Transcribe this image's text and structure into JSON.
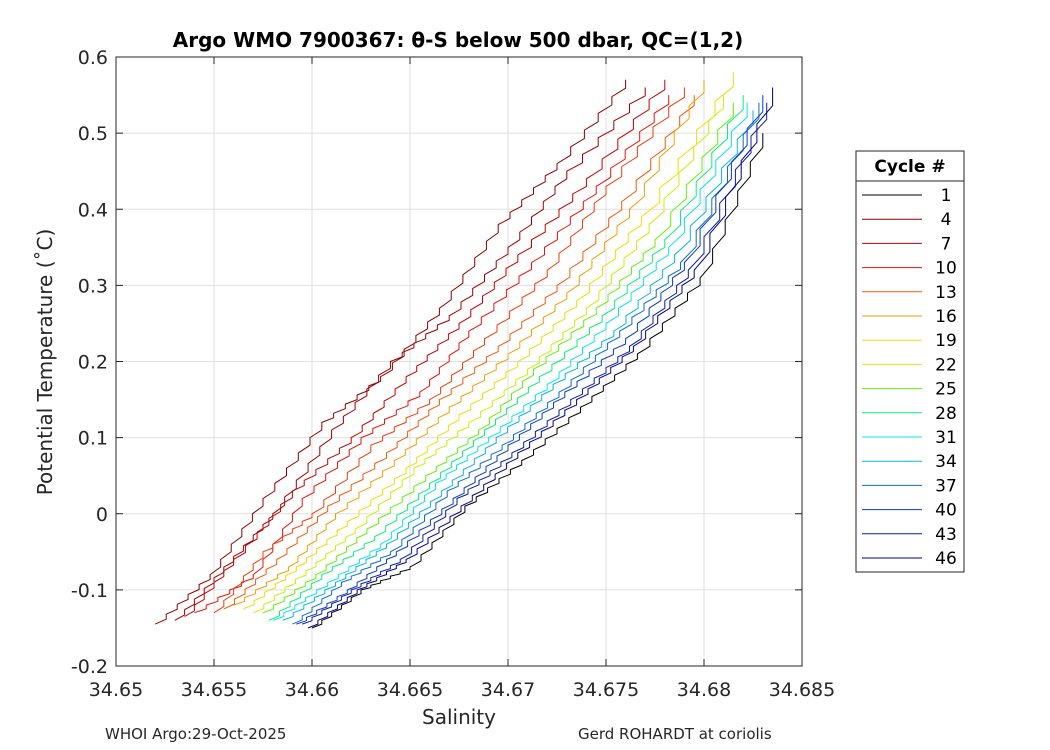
{
  "chart_data": {
    "type": "line",
    "title": "Argo WMO 7900367: θ-S below 500 dbar,  QC=(1,2)",
    "xlabel": "Salinity",
    "ylabel": "Potential Temperature (˚C)",
    "xlim": [
      34.65,
      34.685
    ],
    "ylim": [
      -0.2,
      0.6
    ],
    "xticks": [
      34.65,
      34.655,
      34.66,
      34.665,
      34.67,
      34.675,
      34.68,
      34.685
    ],
    "xtick_labels": [
      "34.65",
      "34.655",
      "34.66",
      "34.665",
      "34.67",
      "34.675",
      "34.68",
      "34.685"
    ],
    "yticks": [
      -0.2,
      -0.1,
      0,
      0.1,
      0.2,
      0.3,
      0.4,
      0.5,
      0.6
    ],
    "ytick_labels": [
      "-0.2",
      "-0.1",
      "0",
      "0.1",
      "0.2",
      "0.3",
      "0.4",
      "0.5",
      "0.6"
    ],
    "grid": true,
    "legend": {
      "title": "Cycle #",
      "placement": "outside-right",
      "entries": [
        {
          "label": "1",
          "color": "#000000"
        },
        {
          "label": "4",
          "color": "#8b0000"
        },
        {
          "label": "7",
          "color": "#c00000"
        },
        {
          "label": "10",
          "color": "#e8120a"
        },
        {
          "label": "13",
          "color": "#f05a0a"
        },
        {
          "label": "16",
          "color": "#f29d0a"
        },
        {
          "label": "19",
          "color": "#f0dc0a"
        },
        {
          "label": "22",
          "color": "#c8f00a"
        },
        {
          "label": "25",
          "color": "#64f00a"
        },
        {
          "label": "28",
          "color": "#0af078"
        },
        {
          "label": "31",
          "color": "#0ae6e6"
        },
        {
          "label": "34",
          "color": "#0ab4e6"
        },
        {
          "label": "37",
          "color": "#0a6ec8"
        },
        {
          "label": "40",
          "color": "#0a3cbe"
        },
        {
          "label": "43",
          "color": "#0a1ea0"
        },
        {
          "label": "46",
          "color": "#00008c"
        }
      ]
    },
    "series": [
      {
        "color": "#8b0000",
        "x": [
          34.652,
          34.6548,
          34.6575,
          34.6605,
          34.6635,
          34.6665,
          34.6695,
          34.6725,
          34.676
        ],
        "y": [
          -0.145,
          -0.08,
          0.02,
          0.12,
          0.18,
          0.27,
          0.38,
          0.46,
          0.57
        ]
      },
      {
        "color": "#a00000",
        "x": [
          34.653,
          34.6555,
          34.658,
          34.661,
          34.664,
          34.667,
          34.67,
          34.673,
          34.677
        ],
        "y": [
          -0.14,
          -0.07,
          0.0,
          0.11,
          0.2,
          0.26,
          0.35,
          0.45,
          0.56
        ]
      },
      {
        "color": "#c00000",
        "x": [
          34.6535,
          34.656,
          34.659,
          34.662,
          34.6648,
          34.6675,
          34.6705,
          34.674,
          34.678
        ],
        "y": [
          -0.135,
          -0.06,
          0.03,
          0.1,
          0.18,
          0.25,
          0.34,
          0.44,
          0.57
        ]
      },
      {
        "color": "#e8120a",
        "x": [
          34.654,
          34.657,
          34.6595,
          34.6625,
          34.6655,
          34.668,
          34.6712,
          34.6745,
          34.6782
        ],
        "y": [
          -0.13,
          -0.08,
          0.02,
          0.1,
          0.16,
          0.24,
          0.33,
          0.43,
          0.55
        ]
      },
      {
        "color": "#f03c0a",
        "x": [
          34.655,
          34.6575,
          34.66,
          34.663,
          34.666,
          34.6688,
          34.672,
          34.675,
          34.679
        ],
        "y": [
          -0.13,
          -0.05,
          0.0,
          0.09,
          0.15,
          0.23,
          0.32,
          0.43,
          0.56
        ]
      },
      {
        "color": "#f05a0a",
        "x": [
          34.6555,
          34.6582,
          34.6608,
          34.6638,
          34.6665,
          34.6695,
          34.6725,
          34.6758,
          34.6795
        ],
        "y": [
          -0.125,
          -0.06,
          0.01,
          0.08,
          0.15,
          0.22,
          0.3,
          0.41,
          0.55
        ]
      },
      {
        "color": "#f29d0a",
        "x": [
          34.656,
          34.6588,
          34.6612,
          34.6642,
          34.667,
          34.67,
          34.673,
          34.6762,
          34.68
        ],
        "y": [
          -0.12,
          -0.07,
          0.0,
          0.07,
          0.14,
          0.21,
          0.29,
          0.4,
          0.57
        ]
      },
      {
        "color": "#f0dc0a",
        "x": [
          34.6565,
          34.6592,
          34.6618,
          34.6648,
          34.6675,
          34.6705,
          34.6735,
          34.6768,
          34.6815
        ],
        "y": [
          -0.125,
          -0.07,
          -0.01,
          0.06,
          0.13,
          0.2,
          0.28,
          0.39,
          0.58
        ]
      },
      {
        "color": "#c8f00a",
        "x": [
          34.657,
          34.6597,
          34.6622,
          34.6652,
          34.668,
          34.671,
          34.674,
          34.6772,
          34.681
        ],
        "y": [
          -0.13,
          -0.075,
          -0.02,
          0.06,
          0.12,
          0.19,
          0.27,
          0.38,
          0.55
        ]
      },
      {
        "color": "#64f00a",
        "x": [
          34.6575,
          34.6602,
          34.6628,
          34.6658,
          34.6685,
          34.6713,
          34.6745,
          34.6775,
          34.6815
        ],
        "y": [
          -0.13,
          -0.08,
          -0.02,
          0.05,
          0.11,
          0.19,
          0.27,
          0.36,
          0.54
        ]
      },
      {
        "color": "#0af078",
        "x": [
          34.6578,
          34.6605,
          34.6632,
          34.666,
          34.6688,
          34.6716,
          34.6748,
          34.678,
          34.682
        ],
        "y": [
          -0.14,
          -0.08,
          -0.03,
          0.04,
          0.11,
          0.18,
          0.26,
          0.36,
          0.55
        ]
      },
      {
        "color": "#0ae6e6",
        "x": [
          34.658,
          34.6608,
          34.6635,
          34.6663,
          34.669,
          34.672,
          34.675,
          34.6782,
          34.6822
        ],
        "y": [
          -0.14,
          -0.09,
          -0.04,
          0.04,
          0.1,
          0.17,
          0.25,
          0.35,
          0.54
        ]
      },
      {
        "color": "#0ab4e6",
        "x": [
          34.6585,
          34.6612,
          34.6638,
          34.6666,
          34.6694,
          34.6723,
          34.6754,
          34.6785,
          34.6825
        ],
        "y": [
          -0.14,
          -0.09,
          -0.04,
          0.03,
          0.1,
          0.17,
          0.24,
          0.34,
          0.53
        ]
      },
      {
        "color": "#0a6ec8",
        "x": [
          34.659,
          34.6615,
          34.664,
          34.6669,
          34.6697,
          34.6726,
          34.6757,
          34.6788,
          34.6828
        ],
        "y": [
          -0.145,
          -0.09,
          -0.05,
          0.03,
          0.09,
          0.16,
          0.24,
          0.33,
          0.54
        ]
      },
      {
        "color": "#0a3cbe",
        "x": [
          34.6592,
          34.6618,
          34.6643,
          34.6672,
          34.67,
          34.6729,
          34.676,
          34.679,
          34.683
        ],
        "y": [
          -0.145,
          -0.1,
          -0.05,
          0.02,
          0.09,
          0.16,
          0.23,
          0.33,
          0.55
        ]
      },
      {
        "color": "#0a1ea0",
        "x": [
          34.6595,
          34.662,
          34.6645,
          34.6674,
          34.6702,
          34.6732,
          34.6762,
          34.6792,
          34.6832
        ],
        "y": [
          -0.145,
          -0.1,
          -0.06,
          0.02,
          0.08,
          0.15,
          0.22,
          0.32,
          0.54
        ]
      },
      {
        "color": "#00008c",
        "x": [
          34.6598,
          34.6623,
          34.6648,
          34.6676,
          34.6705,
          34.6735,
          34.6764,
          34.6795,
          34.6835
        ],
        "y": [
          -0.15,
          -0.1,
          -0.06,
          0.01,
          0.08,
          0.15,
          0.22,
          0.32,
          0.56
        ]
      },
      {
        "color": "#000000",
        "x": [
          34.66,
          34.6625,
          34.665,
          34.6678,
          34.6707,
          34.6737,
          34.6766,
          34.6798,
          34.683
        ],
        "y": [
          -0.15,
          -0.1,
          -0.07,
          0.01,
          0.07,
          0.14,
          0.21,
          0.31,
          0.5
        ]
      }
    ]
  },
  "footer": {
    "left": "WHOI Argo:29-Oct-2025",
    "right": "Gerd ROHARDT at coriolis"
  }
}
